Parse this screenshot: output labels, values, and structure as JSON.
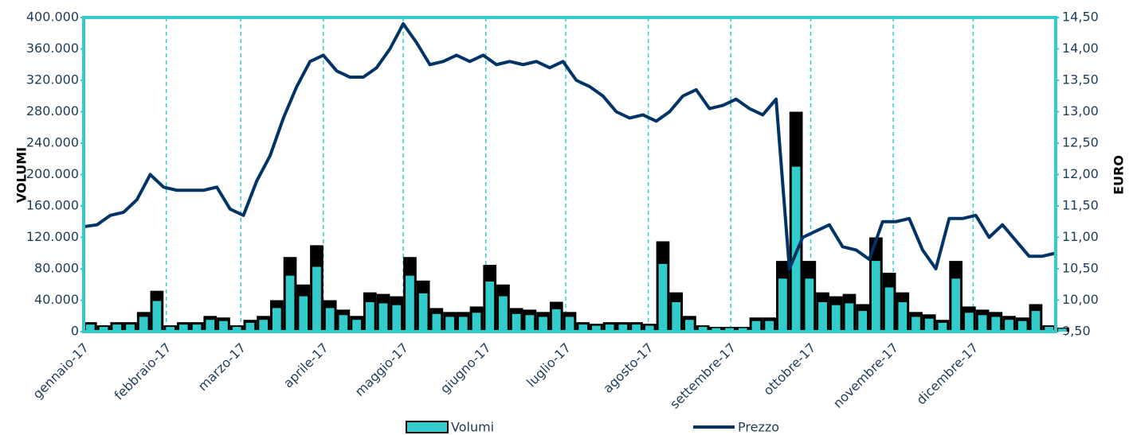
{
  "chart_data": {
    "type": "bar_line",
    "y_label": "VOLUMI",
    "y2_label": "EURO",
    "xlim": [
      0,
      365
    ],
    "xticks": [
      {
        "value": 0,
        "label": "gennaio-17"
      },
      {
        "value": 31,
        "label": "febbraio-17"
      },
      {
        "value": 59,
        "label": "marzo-17"
      },
      {
        "value": 90,
        "label": "aprile-17"
      },
      {
        "value": 120,
        "label": "maggio-17"
      },
      {
        "value": 151,
        "label": "giugno-17"
      },
      {
        "value": 181,
        "label": "luglio-17"
      },
      {
        "value": 212,
        "label": "agosto-17"
      },
      {
        "value": 243,
        "label": "settembre-17"
      },
      {
        "value": 273,
        "label": "ottobre-17"
      },
      {
        "value": 304,
        "label": "novembre-17"
      },
      {
        "value": 334,
        "label": "dicembre-17"
      }
    ],
    "ylim": [
      0,
      400000
    ],
    "yticks": [
      0,
      {
        "value": 40000,
        "label": "40.000"
      },
      {
        "value": 80000,
        "label": "80.000"
      },
      {
        "value": 120000,
        "label": "120.000"
      },
      {
        "value": 160000,
        "label": "160.000"
      },
      {
        "value": 200000,
        "label": "200.000"
      },
      {
        "value": 240000,
        "label": "240.000"
      },
      {
        "value": 280000,
        "label": "280.000"
      },
      {
        "value": 320000,
        "label": "320.000"
      },
      {
        "value": 360000,
        "label": "360.000"
      },
      {
        "value": 400000,
        "label": "400.000"
      }
    ],
    "y2lim": [
      9.5,
      14.5
    ],
    "y2ticks": [
      {
        "value": 9.5,
        "label": "9,50"
      },
      {
        "value": 10,
        "label": "10,00"
      },
      {
        "value": 10.5,
        "label": "10,50"
      },
      {
        "value": 11,
        "label": "11,00"
      },
      {
        "value": 11.5,
        "label": "11,50"
      },
      {
        "value": 12,
        "label": "12,00"
      },
      {
        "value": 12.5,
        "label": "12,50"
      },
      {
        "value": 13,
        "label": "13,00"
      },
      {
        "value": 13.5,
        "label": "13,50"
      },
      {
        "value": 14,
        "label": "14,00"
      },
      {
        "value": 14.5,
        "label": "14,50"
      }
    ],
    "grid": true,
    "x": [
      0,
      5,
      10,
      15,
      20,
      25,
      30,
      35,
      40,
      45,
      50,
      55,
      60,
      65,
      70,
      75,
      80,
      85,
      90,
      95,
      100,
      105,
      110,
      115,
      120,
      125,
      130,
      135,
      140,
      145,
      150,
      155,
      160,
      165,
      170,
      175,
      180,
      185,
      190,
      195,
      200,
      205,
      210,
      215,
      220,
      225,
      230,
      235,
      240,
      245,
      250,
      255,
      260,
      265,
      270,
      275,
      280,
      285,
      290,
      295,
      300,
      305,
      310,
      315,
      320,
      325,
      330,
      335,
      340,
      345,
      350,
      355,
      360,
      365
    ],
    "series": [
      {
        "name": "Volumi",
        "type": "bar",
        "color": "#33cccc",
        "values": [
          12000,
          8000,
          12000,
          12000,
          25000,
          52000,
          8000,
          12000,
          12000,
          20000,
          18000,
          8000,
          15000,
          20000,
          40000,
          95000,
          60000,
          110000,
          40000,
          28000,
          20000,
          50000,
          48000,
          45000,
          95000,
          65000,
          30000,
          25000,
          25000,
          32000,
          85000,
          60000,
          30000,
          28000,
          25000,
          38000,
          25000,
          12000,
          10000,
          12000,
          12000,
          12000,
          10000,
          115000,
          50000,
          20000,
          8000,
          6000,
          6000,
          6000,
          18000,
          18000,
          90000,
          280000,
          90000,
          50000,
          45000,
          48000,
          35000,
          120000,
          75000,
          50000,
          25000,
          22000,
          15000,
          90000,
          32000,
          28000,
          25000,
          20000,
          18000,
          35000,
          8000,
          5000
        ]
      },
      {
        "name": "Prezzo",
        "type": "line",
        "axis": "y2",
        "color": "#003366",
        "values": [
          11.17,
          11.2,
          11.35,
          11.4,
          11.6,
          12.0,
          11.8,
          11.75,
          11.75,
          11.75,
          11.8,
          11.45,
          11.35,
          11.9,
          12.3,
          12.9,
          13.4,
          13.8,
          13.9,
          13.65,
          13.55,
          13.55,
          13.7,
          14.0,
          14.4,
          14.1,
          13.75,
          13.8,
          13.9,
          13.8,
          13.9,
          13.75,
          13.8,
          13.75,
          13.8,
          13.7,
          13.8,
          13.5,
          13.4,
          13.25,
          13.0,
          12.9,
          12.95,
          12.85,
          13.0,
          13.25,
          13.35,
          13.05,
          13.1,
          13.2,
          13.05,
          12.95,
          13.2,
          10.5,
          11.0,
          11.1,
          11.2,
          10.85,
          10.8,
          10.65,
          11.25,
          11.25,
          11.3,
          10.8,
          10.5,
          11.3,
          11.3,
          11.35,
          11.0,
          11.2,
          10.95,
          10.7,
          10.7,
          10.75
        ]
      }
    ]
  }
}
